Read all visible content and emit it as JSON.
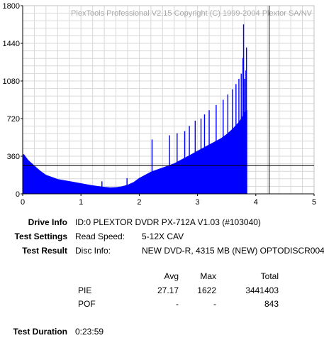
{
  "chart_data": {
    "type": "bar",
    "title": "",
    "watermark": "PlexTools Professional V2.15 Copyright (C) 1999-2004 Plextor SA/NV",
    "xlabel": "",
    "ylabel": "",
    "xlim": [
      0,
      5
    ],
    "ylim": [
      0,
      1800
    ],
    "x_ticks": [
      "0",
      "1",
      "2",
      "3",
      "4",
      "5"
    ],
    "y_ticks": [
      "0",
      "360",
      "720",
      "1080",
      "1440",
      "1800"
    ],
    "grid": true,
    "bar_color": "#0000ff",
    "envelope": {
      "x": [
        0.0,
        0.02,
        0.05,
        0.1,
        0.2,
        0.3,
        0.4,
        0.5,
        0.6,
        0.7,
        0.8,
        0.9,
        1.0,
        1.1,
        1.2,
        1.3,
        1.4,
        1.5,
        1.6,
        1.7,
        1.8,
        1.9,
        2.0,
        2.1,
        2.2,
        2.3,
        2.4,
        2.5,
        2.6,
        2.7,
        2.8,
        2.9,
        3.0,
        3.1,
        3.2,
        3.3,
        3.4,
        3.5,
        3.6,
        3.7,
        3.75,
        3.8,
        3.85
      ],
      "y": [
        360,
        380,
        355,
        320,
        270,
        220,
        180,
        160,
        140,
        130,
        120,
        110,
        100,
        90,
        80,
        72,
        65,
        60,
        62,
        70,
        85,
        110,
        150,
        180,
        210,
        230,
        250,
        270,
        290,
        320,
        350,
        380,
        410,
        440,
        470,
        500,
        530,
        570,
        620,
        680,
        720,
        780,
        800
      ]
    },
    "spikes": {
      "x": [
        0.58,
        1.36,
        1.79,
        2.22,
        2.52,
        2.65,
        2.78,
        2.86,
        2.96,
        3.06,
        3.12,
        3.2,
        3.32,
        3.44,
        3.52,
        3.6,
        3.66,
        3.71,
        3.75,
        3.78,
        3.79,
        3.81,
        3.83,
        3.84
      ],
      "y": [
        140,
        120,
        150,
        520,
        560,
        580,
        600,
        650,
        700,
        720,
        760,
        800,
        850,
        900,
        950,
        1000,
        1050,
        1100,
        1150,
        1300,
        1622,
        1100,
        1180,
        1400
      ]
    },
    "reference_line_y": 270,
    "reference_line_x": 4.23
  },
  "info": {
    "drive_info_label": "Drive Info",
    "drive_info_value": "ID:0 PLEXTOR DVDR PX-712A V1.03 (#103040)",
    "test_settings_label": "Test Settings",
    "read_speed_label": "Read Speed:",
    "read_speed_value": "5-12X CAV",
    "test_result_label": "Test Result",
    "disc_info_label": "Disc Info:",
    "disc_info_value": "NEW DVD-R, 4315 MB (NEW) OPTODISCR004"
  },
  "results": {
    "headers": {
      "avg": "Avg",
      "max": "Max",
      "total": "Total"
    },
    "rows": [
      {
        "name": "PIE",
        "avg": "27.17",
        "max": "1622",
        "total": "3441403"
      },
      {
        "name": "POF",
        "avg": "-",
        "max": "-",
        "total": "843"
      }
    ]
  },
  "duration": {
    "label": "Test Duration",
    "value": "0:23:59"
  }
}
